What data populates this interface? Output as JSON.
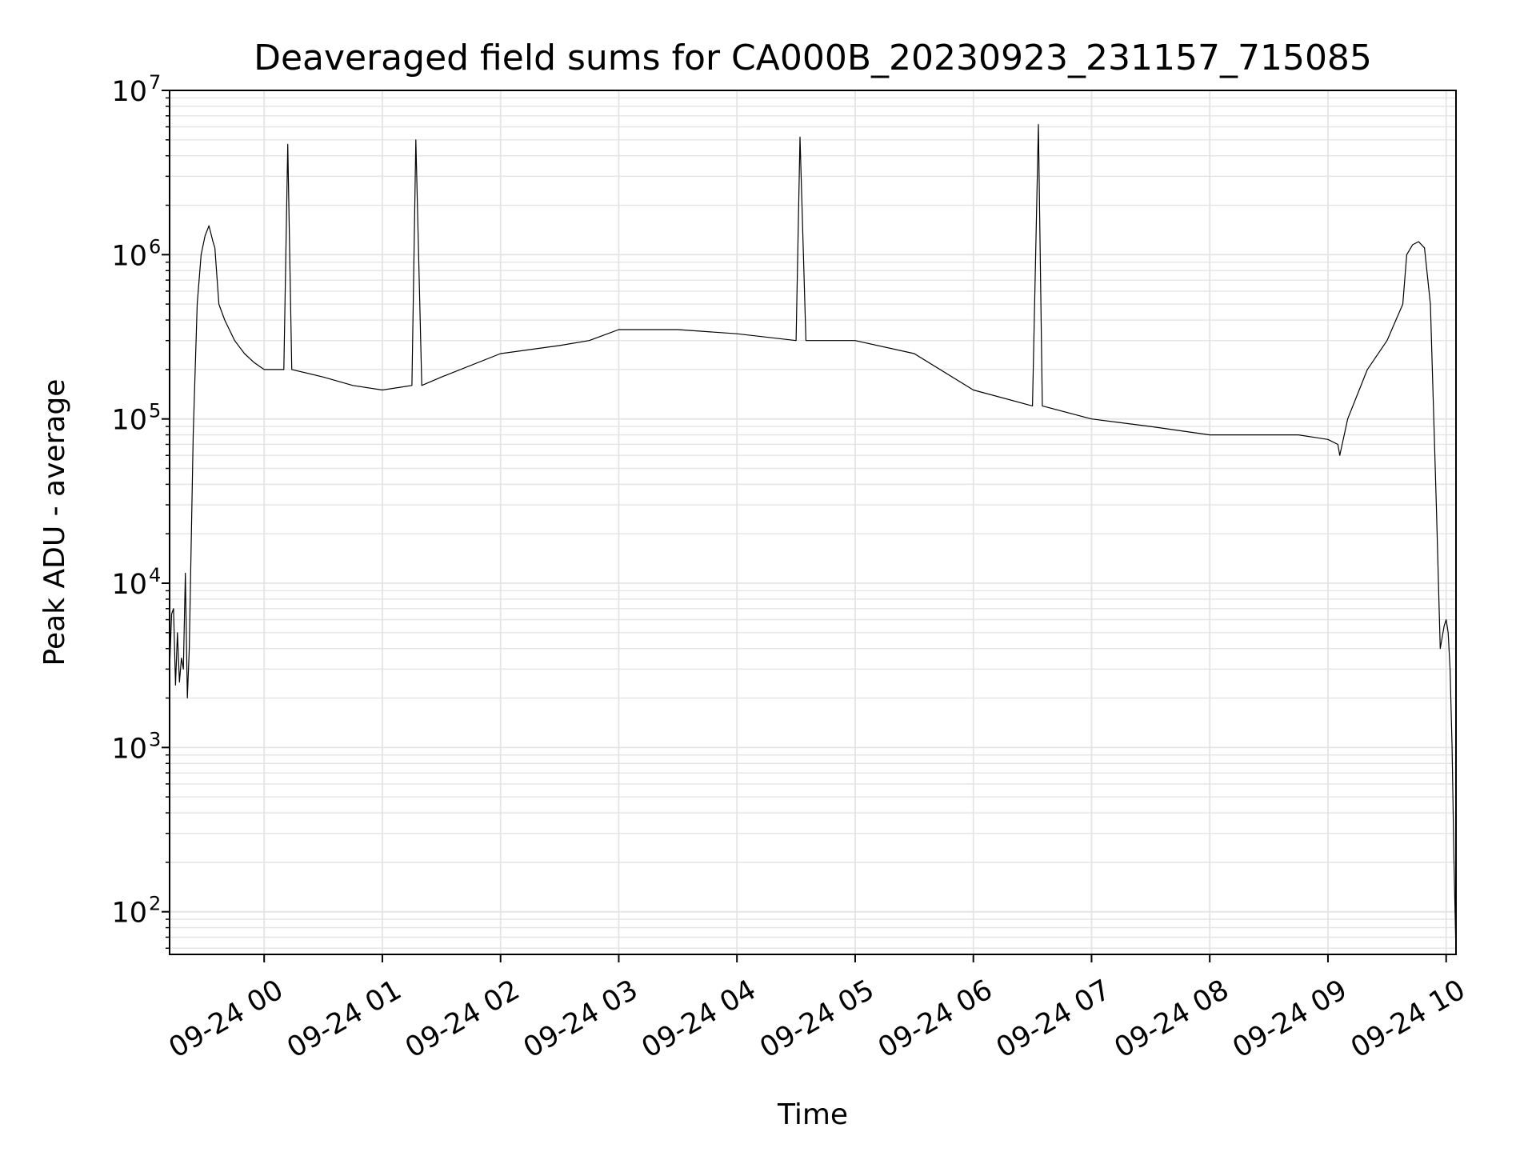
{
  "chart_data": {
    "type": "line",
    "title": "Deaveraged field sums for CA000B_20230923_231157_715085",
    "xlabel": "Time",
    "ylabel": "Peak ADU - average",
    "x_tick_labels": [
      "09-24 00",
      "09-24 01",
      "09-24 02",
      "09-24 03",
      "09-24 04",
      "09-24 05",
      "09-24 06",
      "09-24 07",
      "09-24 08",
      "09-24 09",
      "09-24 10"
    ],
    "y_tick_labels": [
      {
        "base": "10",
        "exp": "2"
      },
      {
        "base": "10",
        "exp": "3"
      },
      {
        "base": "10",
        "exp": "4"
      },
      {
        "base": "10",
        "exp": "5"
      },
      {
        "base": "10",
        "exp": "6"
      },
      {
        "base": "10",
        "exp": "7"
      }
    ],
    "x_range": [
      "2023-09-23 23:12",
      "2023-09-24 10:05"
    ],
    "y_range": [
      55,
      10000000
    ],
    "y_scale": "log",
    "grid": true,
    "line_color": "#000000",
    "grid_color": "#e4e4e4",
    "series": [
      {
        "x": [
          "2023-09-23 23:12",
          "2023-09-23 23:13",
          "2023-09-23 23:14",
          "2023-09-23 23:15",
          "2023-09-23 23:16",
          "2023-09-23 23:17",
          "2023-09-23 23:18",
          "2023-09-23 23:19",
          "2023-09-23 23:20",
          "2023-09-23 23:21",
          "2023-09-23 23:22",
          "2023-09-23 23:24",
          "2023-09-23 23:26",
          "2023-09-23 23:28",
          "2023-09-23 23:30",
          "2023-09-23 23:32",
          "2023-09-23 23:34",
          "2023-09-23 23:35",
          "2023-09-23 23:37",
          "2023-09-23 23:40",
          "2023-09-23 23:45",
          "2023-09-23 23:50",
          "2023-09-23 23:55",
          "2023-09-24 00:00",
          "2023-09-24 00:10",
          "2023-09-24 00:12",
          "2023-09-24 00:14",
          "2023-09-24 00:30",
          "2023-09-24 00:45",
          "2023-09-24 01:00",
          "2023-09-24 01:15",
          "2023-09-24 01:17",
          "2023-09-24 01:20",
          "2023-09-24 01:30",
          "2023-09-24 02:00",
          "2023-09-24 02:30",
          "2023-09-24 02:45",
          "2023-09-24 03:00",
          "2023-09-24 03:30",
          "2023-09-24 04:00",
          "2023-09-24 04:30",
          "2023-09-24 04:32",
          "2023-09-24 04:35",
          "2023-09-24 05:00",
          "2023-09-24 05:30",
          "2023-09-24 06:00",
          "2023-09-24 06:30",
          "2023-09-24 06:33",
          "2023-09-24 06:35",
          "2023-09-24 07:00",
          "2023-09-24 07:30",
          "2023-09-24 08:00",
          "2023-09-24 08:30",
          "2023-09-24 08:42",
          "2023-09-24 08:45",
          "2023-09-24 09:00",
          "2023-09-24 09:05",
          "2023-09-24 09:06",
          "2023-09-24 09:10",
          "2023-09-24 09:20",
          "2023-09-24 09:30",
          "2023-09-24 09:38",
          "2023-09-24 09:40",
          "2023-09-24 09:43",
          "2023-09-24 09:46",
          "2023-09-24 09:49",
          "2023-09-24 09:52",
          "2023-09-24 09:55",
          "2023-09-24 09:57",
          "2023-09-24 09:59",
          "2023-09-24 10:00",
          "2023-09-24 10:01",
          "2023-09-24 10:02",
          "2023-09-24 10:03",
          "2023-09-24 10:04",
          "2023-09-24 10:05"
        ],
        "y": [
          3000,
          6500,
          7000,
          2400,
          5000,
          2500,
          3500,
          3000,
          11500,
          2000,
          4000,
          80000,
          500000,
          1000000,
          1300000,
          1500000,
          1200000,
          1100000,
          500000,
          400000,
          300000,
          250000,
          220000,
          200000,
          200000,
          4700000,
          200000,
          180000,
          160000,
          150000,
          160000,
          5000000,
          160000,
          180000,
          250000,
          280000,
          300000,
          350000,
          350000,
          330000,
          300000,
          5200000,
          300000,
          300000,
          250000,
          150000,
          120000,
          6200000,
          120000,
          100000,
          90000,
          80000,
          80000,
          80000,
          80000,
          75000,
          70000,
          60000,
          100000,
          200000,
          300000,
          500000,
          1000000,
          1150000,
          1200000,
          1100000,
          500000,
          30000,
          4000,
          5500,
          6000,
          5000,
          3000,
          1000,
          200,
          55
        ]
      }
    ]
  }
}
